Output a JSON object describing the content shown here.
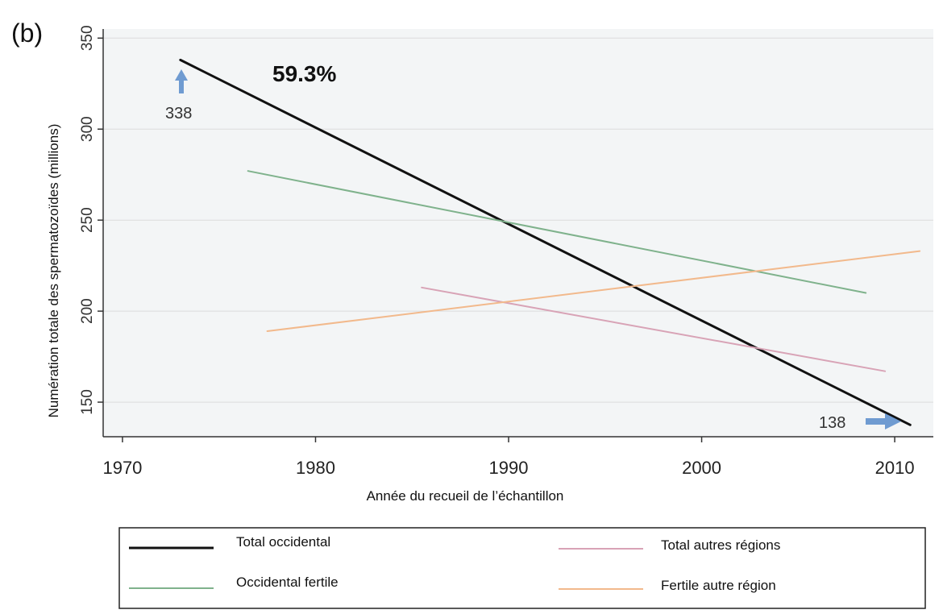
{
  "panel_label": "(b)",
  "chart_data": {
    "type": "line",
    "xlabel": "Année du recueil de l’échantillon",
    "ylabel": "Numération totale des spermatozoïdes (millions)",
    "xlim": [
      1969,
      2012
    ],
    "ylim": [
      131,
      355
    ],
    "x_ticks": [
      1970,
      1980,
      1990,
      2000,
      2010
    ],
    "y_ticks": [
      150,
      200,
      250,
      300,
      350
    ],
    "grid": "horizontal",
    "legend_position": "bottom",
    "series": [
      {
        "name": "Total occidental",
        "color": "#111111",
        "width": 3,
        "x": [
          1973,
          2010.8
        ],
        "y": [
          338,
          137.5
        ]
      },
      {
        "name": "Occidental fertile",
        "color": "#7fb28c",
        "width": 2,
        "x": [
          1976.5,
          2008.5
        ],
        "y": [
          277,
          210
        ]
      },
      {
        "name": "Total autres régions",
        "color": "#d8a3b6",
        "width": 2,
        "x": [
          1985.5,
          2009.5
        ],
        "y": [
          213,
          167
        ]
      },
      {
        "name": "Fertile autre région",
        "color": "#f2b98c",
        "width": 2,
        "x": [
          1977.5,
          2011.3
        ],
        "y": [
          189,
          233
        ]
      }
    ],
    "annotations": [
      {
        "text": "59.3%"
      },
      {
        "text": "338"
      },
      {
        "text": "138"
      }
    ],
    "arrow_color": "#6f9bd1"
  }
}
